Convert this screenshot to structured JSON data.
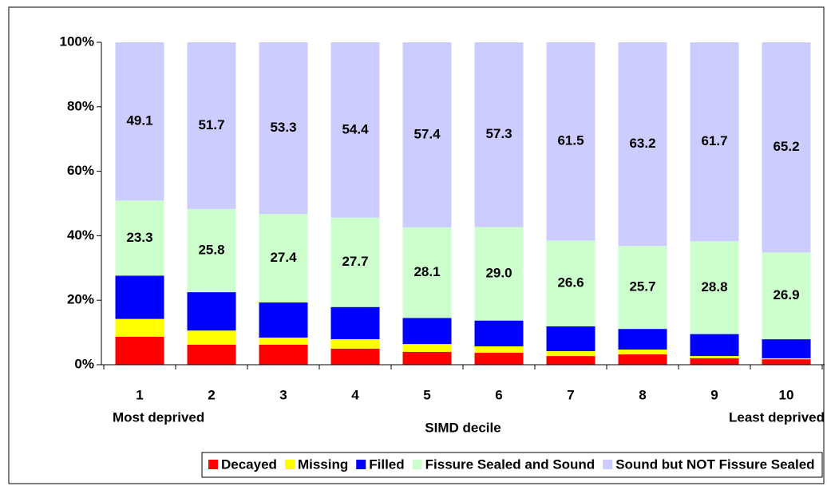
{
  "chart_data": {
    "type": "stacked_bar_percent",
    "categories": [
      "1",
      "2",
      "3",
      "4",
      "5",
      "6",
      "7",
      "8",
      "9",
      "10"
    ],
    "x_label": "SIMD decile",
    "annotations": [
      "Most deprived",
      "Least deprived"
    ],
    "series": [
      {
        "name": "Decayed",
        "color": "#ff0000",
        "values": [
          8.7,
          6.2,
          6.2,
          5.0,
          4.0,
          3.7,
          2.7,
          3.2,
          2.0,
          1.7
        ]
      },
      {
        "name": "Missing",
        "color": "#ffff00",
        "values": [
          5.5,
          4.4,
          2.2,
          2.9,
          2.4,
          2.0,
          1.5,
          1.5,
          0.7,
          0.3
        ]
      },
      {
        "name": "Filled",
        "color": "#0000ff",
        "values": [
          13.4,
          11.9,
          10.9,
          10.0,
          8.1,
          8.0,
          7.7,
          6.4,
          6.8,
          5.9
        ]
      },
      {
        "name": "Fissure Sealed and Sound",
        "color": "#ccffcc",
        "values": [
          23.3,
          25.8,
          27.4,
          27.7,
          28.1,
          29.0,
          26.6,
          25.7,
          28.8,
          26.9
        ],
        "value_labels": [
          "23.3",
          "25.8",
          "27.4",
          "27.7",
          "28.1",
          "29.0",
          "26.6",
          "25.7",
          "28.8",
          "26.9"
        ]
      },
      {
        "name": "Sound but NOT Fissure Sealed",
        "color": "#ccccff",
        "values": [
          49.1,
          51.7,
          53.3,
          54.4,
          57.4,
          57.3,
          61.5,
          63.2,
          61.7,
          65.2
        ],
        "value_labels": [
          "49.1",
          "51.7",
          "53.3",
          "54.4",
          "57.4",
          "57.3",
          "61.5",
          "63.2",
          "61.7",
          "65.2"
        ]
      }
    ],
    "ylim": [
      0,
      100
    ],
    "yticks": [
      {
        "value": 0,
        "label": "0%"
      },
      {
        "value": 20,
        "label": "20%"
      },
      {
        "value": 40,
        "label": "40%"
      },
      {
        "value": 60,
        "label": "60%"
      },
      {
        "value": 80,
        "label": "80%"
      },
      {
        "value": 100,
        "label": "100%"
      }
    ],
    "legend": "bottom"
  }
}
